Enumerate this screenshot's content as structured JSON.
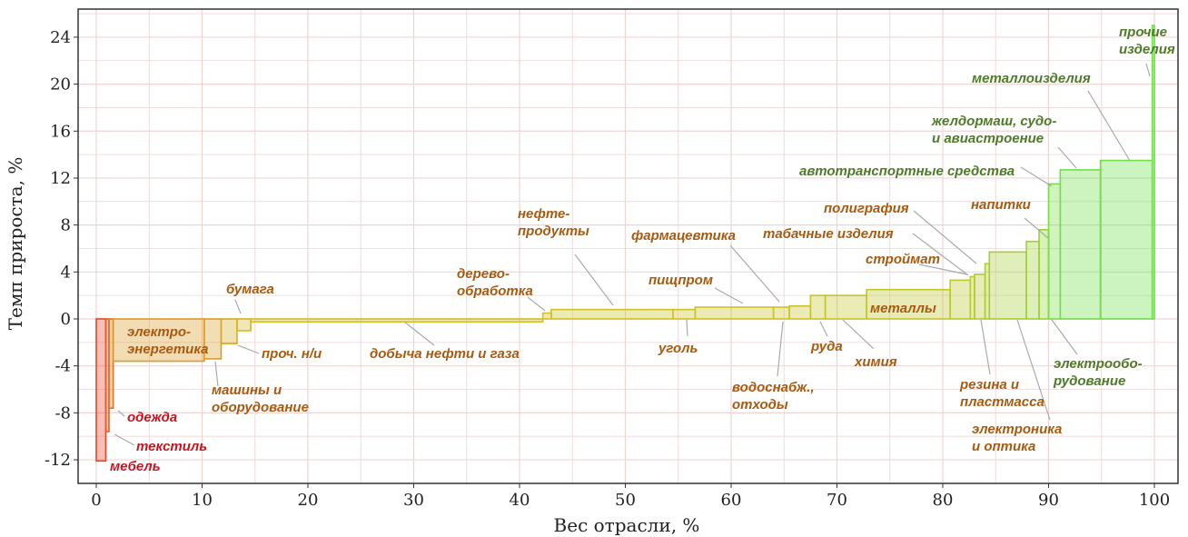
{
  "chart_data": {
    "type": "bar",
    "variant": "variable-width (marimekko-style) bars",
    "xlabel": "Вес отрасли, %",
    "ylabel": "Темп прироста, %",
    "xlim": [
      0,
      100
    ],
    "ylim": [
      -14,
      26
    ],
    "xticks": [
      0,
      10,
      20,
      30,
      40,
      50,
      60,
      70,
      80,
      90,
      100
    ],
    "yticks": [
      -12,
      -8,
      -4,
      0,
      4,
      8,
      12,
      16,
      20,
      24
    ],
    "grid": true,
    "color_scale": {
      "low": "#e8472a",
      "mid": "#d4c027",
      "high": "#6ee04a"
    },
    "bars": [
      {
        "x0": 0.0,
        "x1": 0.9,
        "value": -12.1,
        "label": "мебель"
      },
      {
        "x0": 0.9,
        "x1": 1.2,
        "value": -9.6,
        "label": "текстиль"
      },
      {
        "x0": 1.2,
        "x1": 1.6,
        "value": -7.6,
        "label": "одежда"
      },
      {
        "x0": 1.6,
        "x1": 10.2,
        "value": -3.6,
        "label": "электро-\nэнергетика"
      },
      {
        "x0": 10.2,
        "x1": 11.8,
        "value": -3.4,
        "label": "машины и\nоборудование"
      },
      {
        "x0": 11.8,
        "x1": 13.3,
        "value": -2.1,
        "label": "проч. н/и"
      },
      {
        "x0": 13.3,
        "x1": 14.6,
        "value": -1.0,
        "label": "бумага"
      },
      {
        "x0": 14.6,
        "x1": 42.2,
        "value": -0.25,
        "label": "добыча нефти и газа"
      },
      {
        "x0": 42.2,
        "x1": 43.0,
        "value": 0.5,
        "label": "дерево-\nобработка"
      },
      {
        "x0": 43.0,
        "x1": 54.5,
        "value": 0.8,
        "label": "нефте-\nпродукты"
      },
      {
        "x0": 54.5,
        "x1": 56.6,
        "value": 0.8,
        "label": "уголь"
      },
      {
        "x0": 56.6,
        "x1": 64.0,
        "value": 1.0,
        "label": "пищпром"
      },
      {
        "x0": 64.0,
        "x1": 65.5,
        "value": 1.0,
        "label": "фармацевтика"
      },
      {
        "x0": 65.5,
        "x1": 67.5,
        "value": 1.1,
        "label": "водоснабж.,\nотходы"
      },
      {
        "x0": 67.5,
        "x1": 68.9,
        "value": 2.0,
        "label": "руда"
      },
      {
        "x0": 68.9,
        "x1": 72.8,
        "value": 2.0,
        "label": "химия"
      },
      {
        "x0": 72.8,
        "x1": 80.7,
        "value": 2.5,
        "label": "металлы"
      },
      {
        "x0": 80.7,
        "x1": 82.6,
        "value": 3.3,
        "label": "строймат"
      },
      {
        "x0": 82.6,
        "x1": 83.0,
        "value": 3.6,
        "label": "табачные изделия"
      },
      {
        "x0": 83.0,
        "x1": 84.0,
        "value": 3.8,
        "label": "резина и\nпластмасса"
      },
      {
        "x0": 84.0,
        "x1": 84.4,
        "value": 4.7,
        "label": "полиграфия"
      },
      {
        "x0": 84.4,
        "x1": 87.9,
        "value": 5.7,
        "label": "электроника\nи оптика"
      },
      {
        "x0": 87.9,
        "x1": 89.1,
        "value": 6.6,
        "label": "напитки"
      },
      {
        "x0": 89.1,
        "x1": 90.0,
        "value": 7.6,
        "label": "электрообо-\nрудование"
      },
      {
        "x0": 90.0,
        "x1": 91.1,
        "value": 11.5,
        "label": "автотранспортные средства"
      },
      {
        "x0": 91.1,
        "x1": 94.9,
        "value": 12.7,
        "label": "желдормаш, судо-\nи авиастроение"
      },
      {
        "x0": 94.9,
        "x1": 99.8,
        "value": 13.5,
        "label": "металлоизделия"
      },
      {
        "x0": 99.8,
        "x1": 100.0,
        "value": 25.0,
        "label": "прочие\nизделия"
      }
    ]
  }
}
